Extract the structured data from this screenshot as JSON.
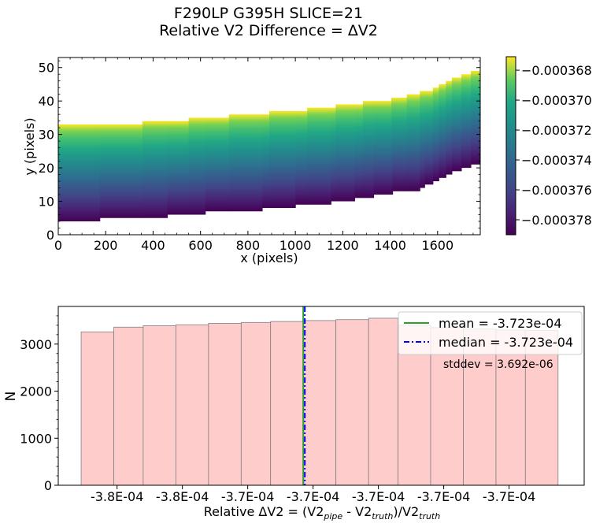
{
  "title": {
    "line1": "F290LP   G395H   SLICE=21",
    "line2": "Relative V2 Difference = ΔV2"
  },
  "chart_data": [
    {
      "type": "heatmap",
      "xlabel": "x (pixels)",
      "ylabel": "y (pixels)",
      "xlim": [
        0,
        1780
      ],
      "ylim": [
        0,
        53
      ],
      "x_ticks": [
        "0",
        "200",
        "400",
        "600",
        "800",
        "1000",
        "1200",
        "1400",
        "1600"
      ],
      "y_ticks": [
        "0",
        "10",
        "20",
        "30",
        "40",
        "50"
      ],
      "colormap": "viridis",
      "color_range": [
        -0.000379,
        -0.0003671
      ],
      "colorbar_ticks": [
        "−0.000368",
        "−0.000370",
        "−0.000372",
        "−0.000374",
        "−0.000376",
        "−0.000378"
      ],
      "colorbar_tick_values": [
        -0.000368,
        -0.00037,
        -0.000372,
        -0.000374,
        -0.000376,
        -0.000378
      ],
      "strip_steps": [
        {
          "x0": 0,
          "x1": 175,
          "ylo": 4,
          "yhi": 33
        },
        {
          "x0": 175,
          "x1": 355,
          "ylo": 5,
          "yhi": 33
        },
        {
          "x0": 355,
          "x1": 460,
          "ylo": 5,
          "yhi": 34
        },
        {
          "x0": 460,
          "x1": 550,
          "ylo": 6,
          "yhi": 34
        },
        {
          "x0": 550,
          "x1": 620,
          "ylo": 6,
          "yhi": 35
        },
        {
          "x0": 620,
          "x1": 720,
          "ylo": 7,
          "yhi": 35
        },
        {
          "x0": 720,
          "x1": 860,
          "ylo": 7,
          "yhi": 36
        },
        {
          "x0": 860,
          "x1": 890,
          "ylo": 8,
          "yhi": 36
        },
        {
          "x0": 890,
          "x1": 1000,
          "ylo": 8,
          "yhi": 37
        },
        {
          "x0": 1000,
          "x1": 1050,
          "ylo": 9,
          "yhi": 37
        },
        {
          "x0": 1050,
          "x1": 1150,
          "ylo": 9,
          "yhi": 38
        },
        {
          "x0": 1150,
          "x1": 1170,
          "ylo": 10,
          "yhi": 38
        },
        {
          "x0": 1170,
          "x1": 1250,
          "ylo": 10,
          "yhi": 39
        },
        {
          "x0": 1250,
          "x1": 1285,
          "ylo": 11,
          "yhi": 39
        },
        {
          "x0": 1285,
          "x1": 1330,
          "ylo": 11,
          "yhi": 40
        },
        {
          "x0": 1330,
          "x1": 1405,
          "ylo": 12,
          "yhi": 40
        },
        {
          "x0": 1405,
          "x1": 1410,
          "ylo": 12,
          "yhi": 41
        },
        {
          "x0": 1410,
          "x1": 1470,
          "ylo": 13,
          "yhi": 41
        },
        {
          "x0": 1470,
          "x1": 1480,
          "ylo": 13,
          "yhi": 42
        },
        {
          "x0": 1480,
          "x1": 1525,
          "ylo": 13,
          "yhi": 42
        },
        {
          "x0": 1525,
          "x1": 1545,
          "ylo": 14,
          "yhi": 43
        },
        {
          "x0": 1545,
          "x1": 1580,
          "ylo": 15,
          "yhi": 43
        },
        {
          "x0": 1580,
          "x1": 1605,
          "ylo": 16,
          "yhi": 44
        },
        {
          "x0": 1605,
          "x1": 1635,
          "ylo": 17,
          "yhi": 45
        },
        {
          "x0": 1635,
          "x1": 1660,
          "ylo": 18,
          "yhi": 46
        },
        {
          "x0": 1660,
          "x1": 1700,
          "ylo": 19,
          "yhi": 47
        },
        {
          "x0": 1700,
          "x1": 1740,
          "ylo": 20,
          "yhi": 48
        },
        {
          "x0": 1740,
          "x1": 1780,
          "ylo": 21,
          "yhi": 49
        }
      ]
    },
    {
      "type": "bar",
      "xlabel": "Relative ΔV2 = (V2pipe - V2truth)/V2truth",
      "ylabel": "N",
      "xlim": [
        -0.0003798,
        -0.0003637
      ],
      "ylim": [
        0,
        3800
      ],
      "y_ticks": [
        "0",
        "1000",
        "2000",
        "3000"
      ],
      "x_tick_labels": [
        "-3.8E-04",
        "-3.8E-04",
        "-3.7E-04",
        "-3.7E-04",
        "-3.7E-04",
        "-3.7E-04",
        "-3.7E-04"
      ],
      "x_tick_values": [
        -0.000378,
        -0.000376,
        -0.000374,
        -0.000372,
        -0.00037,
        -0.000368,
        -0.000366
      ],
      "bin_edges": [
        -0.0003791,
        -0.0003781,
        -0.0003772,
        -0.0003762,
        -0.0003752,
        -0.0003742,
        -0.0003733,
        -0.0003723,
        -0.0003713,
        -0.0003703,
        -0.0003694,
        -0.0003684,
        -0.0003674,
        -0.0003664,
        -0.0003655,
        -0.0003645
      ],
      "counts": [
        3260,
        3360,
        3390,
        3410,
        3440,
        3460,
        3480,
        3500,
        3520,
        3550,
        3400,
        3350,
        3320,
        3300,
        3290
      ],
      "bar_color": "#ffcccc",
      "stats": {
        "mean_value": -0.0003723,
        "median_value": -0.0003723,
        "mean_label": "mean = -3.723e-04",
        "median_label": "median = -3.723e-04",
        "stddev_label": "stddev = 3.692e-06",
        "mean_color": "#2ca02c",
        "median_color": "#0000ff"
      },
      "legend_position": "upper right"
    }
  ]
}
